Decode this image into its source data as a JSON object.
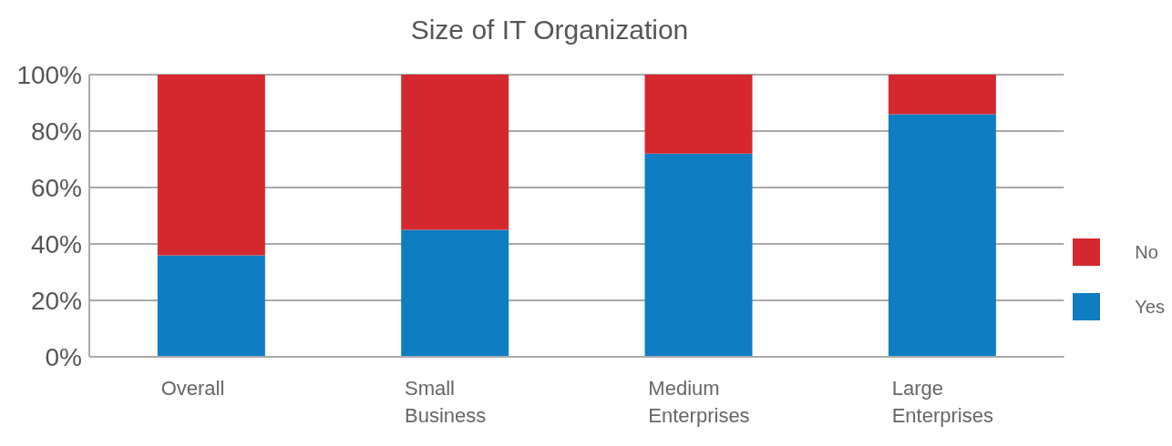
{
  "chart_data": {
    "type": "bar",
    "title": "Size of IT Organization",
    "categories": [
      "Overall",
      "Small Business",
      "Medium Enterprises",
      "Large Enterprises"
    ],
    "stacked": true,
    "series": [
      {
        "name": "Yes",
        "color": "#0e7dc2",
        "values": [
          36,
          45,
          72,
          86
        ]
      },
      {
        "name": "No",
        "color": "#d4282e",
        "values": [
          64,
          55,
          28,
          14
        ]
      }
    ],
    "ylim": [
      0,
      100
    ],
    "yticks": [
      {
        "value": 0,
        "label": "0%"
      },
      {
        "value": 20,
        "label": "20%"
      },
      {
        "value": 40,
        "label": "40%"
      },
      {
        "value": 60,
        "label": "60%"
      },
      {
        "value": 80,
        "label": "80%"
      },
      {
        "value": 100,
        "label": "100%"
      }
    ],
    "grid": "y",
    "legend": "right"
  }
}
